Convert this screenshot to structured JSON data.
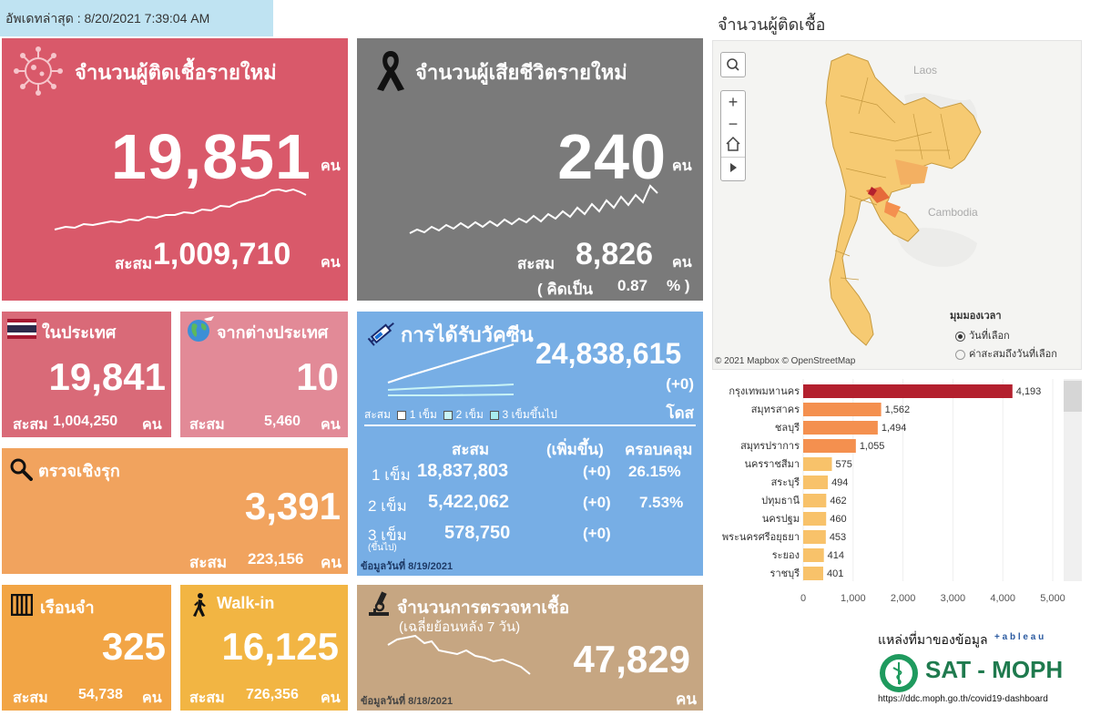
{
  "update": {
    "label": "อัพเดทล่าสุด : 8/20/2021 7:39:04 AM"
  },
  "new_cases": {
    "title": "จำนวนผู้ติดเชื้อรายใหม่",
    "value": "19,851",
    "unit": "คน",
    "acc_label": "สะสม",
    "acc_value": "1,009,710",
    "acc_unit": "คน"
  },
  "deaths": {
    "title": "จำนวนผู้เสียชีวิตรายใหม่",
    "value": "240",
    "unit": "คน",
    "acc_label": "สะสม",
    "acc_value": "8,826",
    "acc_unit": "คน",
    "pct_open": "( คิดเป็น",
    "pct_value": "0.87",
    "pct_close": "% )"
  },
  "domestic": {
    "title": "ในประเทศ",
    "value": "19,841",
    "acc_label": "สะสม",
    "acc_value": "1,004,250",
    "acc_unit": "คน"
  },
  "abroad": {
    "title": "จากต่างประเทศ",
    "value": "10",
    "acc_label": "สะสม",
    "acc_value": "5,460",
    "acc_unit": "คน"
  },
  "proactive": {
    "title": "ตรวจเชิงรุก",
    "value": "3,391",
    "acc_label": "สะสม",
    "acc_value": "223,156",
    "acc_unit": "คน"
  },
  "prison": {
    "title": "เรือนจำ",
    "value": "325",
    "acc_label": "สะสม",
    "acc_value": "54,738",
    "acc_unit": "คน"
  },
  "walkin": {
    "title": "Walk-in",
    "value": "16,125",
    "acc_label": "สะสม",
    "acc_value": "726,356",
    "acc_unit": "คน"
  },
  "vaccine": {
    "title": "การได้รับวัคซีน",
    "total": "24,838,615",
    "delta": "(+0)",
    "unit": "โดส",
    "legend": {
      "label": "สะสม",
      "d1": "1 เข็ม",
      "d2": "2 เข็ม",
      "d3": "3 เข็มขึ้นไป"
    },
    "headers": {
      "acc": "สะสม",
      "inc": "(เพิ่มขึ้น)",
      "cov": "ครอบคลุม"
    },
    "rows": [
      {
        "dose": "1 เข็ม",
        "acc": "18,837,803",
        "inc": "(+0)",
        "cov": "26.15%"
      },
      {
        "dose": "2 เข็ม",
        "acc": "5,422,062",
        "inc": "(+0)",
        "cov": "7.53%"
      },
      {
        "dose": "3 เข็ม",
        "sub": "(ขึ้นไป)",
        "acc": "578,750",
        "inc": "(+0)",
        "cov": ""
      }
    ],
    "note": "ข้อมูลวันที่ 8/19/2021"
  },
  "testing": {
    "title": "จำนวนการตรวจหาเชื้อ",
    "subtitle": "(เฉลี่ยย้อนหลัง 7 วัน)",
    "value": "47,829",
    "unit": "คน",
    "note": "ข้อมูลวันที่ 8/18/2021"
  },
  "map": {
    "title": "จำนวนผู้ติดเชื้อ",
    "labels": {
      "laos": "Laos",
      "cambodia": "Cambodia"
    },
    "attribution": "© 2021 Mapbox  © OpenStreetMap",
    "time_title": "มุมมองเวลา",
    "options": [
      "วันที่เลือก",
      "ค่าสะสมถึงวันที่เลือก"
    ],
    "selected_option": 0,
    "tools": {
      "zoom_in": "+",
      "zoom_out": "−"
    }
  },
  "chart_data": {
    "type": "bar",
    "orientation": "horizontal",
    "categories": [
      "กรุงเทพมหานคร",
      "สมุทรสาคร",
      "ชลบุรี",
      "สมุทรปราการ",
      "นครราชสีมา",
      "สระบุรี",
      "ปทุมธานี",
      "นครปฐม",
      "พระนครศรีอยุธยา",
      "ระยอง",
      "ราชบุรี"
    ],
    "values": [
      4193,
      1562,
      1494,
      1055,
      575,
      494,
      462,
      460,
      453,
      414,
      401
    ],
    "value_labels": [
      "4,193",
      "1,562",
      "1,494",
      "1,055",
      "575",
      "494",
      "462",
      "460",
      "453",
      "414",
      "401"
    ],
    "xlim": [
      0,
      5000
    ],
    "xticks": [
      "0",
      "1,000",
      "2,000",
      "3,000",
      "4,000",
      "5,000"
    ],
    "colors": [
      "#b3202e",
      "#f4904f",
      "#f4904f",
      "#f4904f",
      "#f8c26a",
      "#f8c26a",
      "#f8c26a",
      "#f8c26a",
      "#f8c26a",
      "#f8c26a",
      "#f8c26a"
    ]
  },
  "source": {
    "label": "แหล่งที่มาของข้อมูล",
    "tableau": "+ a b l e a u",
    "brand": "SAT - MOPH",
    "url": "https://ddc.moph.go.th/covid19-dashboard"
  }
}
